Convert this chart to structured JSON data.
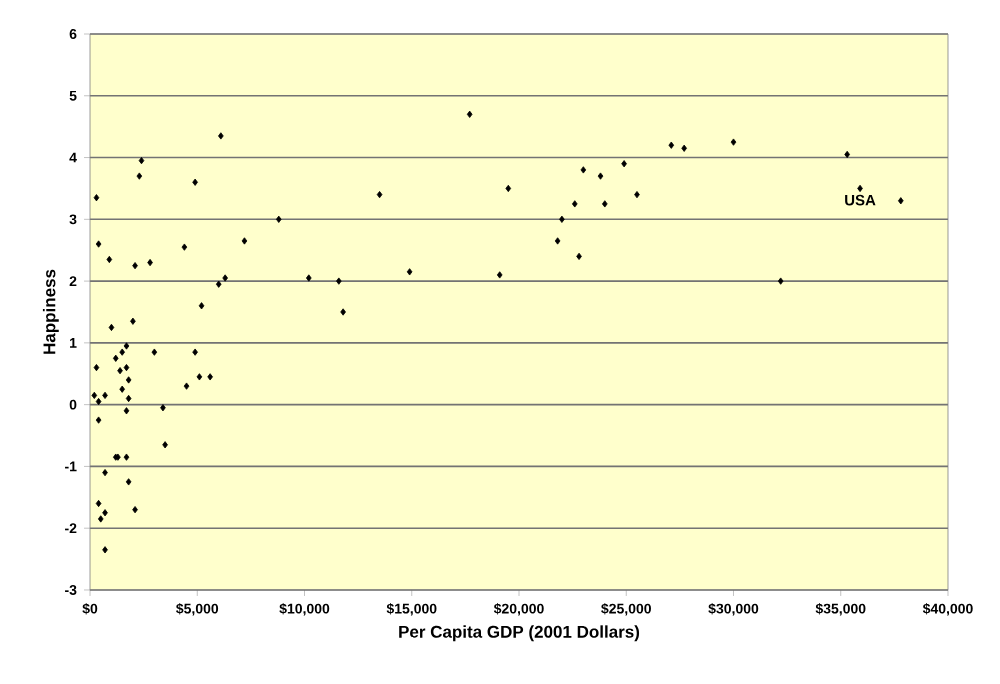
{
  "chart_data": {
    "type": "scatter",
    "xlabel": "Per Capita GDP (2001 Dollars)",
    "ylabel": "Happiness",
    "x": [
      6100,
      2400,
      2300,
      4900,
      300,
      8800,
      400,
      7200,
      4400,
      900,
      2800,
      2100,
      10200,
      6300,
      6000,
      5200,
      2000,
      1000,
      1700,
      3000,
      4900,
      1500,
      1200,
      300,
      1700,
      1400,
      1800,
      5100,
      5600,
      4500,
      1500,
      200,
      700,
      1800,
      400,
      1700,
      3400,
      400,
      3500,
      1300,
      1200,
      1700,
      700,
      1800,
      400,
      2100,
      700,
      500,
      700,
      17700,
      13500,
      19500,
      23000,
      23800,
      24900,
      25500,
      22600,
      24000,
      22000,
      21800,
      22800,
      11600,
      11800,
      14900,
      19100,
      27100,
      27700,
      30000,
      35300,
      35900,
      37800,
      32200
    ],
    "values": [
      4.35,
      3.95,
      3.7,
      3.6,
      3.35,
      3.0,
      2.6,
      2.65,
      2.55,
      2.35,
      2.3,
      2.25,
      2.05,
      2.05,
      1.95,
      1.6,
      1.35,
      1.25,
      0.95,
      0.85,
      0.85,
      0.85,
      0.75,
      0.6,
      0.6,
      0.55,
      0.4,
      0.45,
      0.45,
      0.3,
      0.25,
      0.15,
      0.15,
      0.1,
      0.05,
      -0.1,
      -0.05,
      -0.25,
      -0.65,
      -0.85,
      -0.85,
      -0.85,
      -1.1,
      -1.25,
      -1.6,
      -1.7,
      -1.75,
      -1.85,
      -2.35,
      4.7,
      3.4,
      3.5,
      3.8,
      3.7,
      3.9,
      3.4,
      3.25,
      3.25,
      3.0,
      2.65,
      2.4,
      2.0,
      1.5,
      2.15,
      2.1,
      4.2,
      4.15,
      4.25,
      4.05,
      3.5,
      3.3,
      2.0
    ],
    "color": "#000000",
    "marker": "diamond",
    "grid": "y",
    "xlim": [
      0,
      40000
    ],
    "ylim": [
      -3,
      6
    ],
    "xticks": [
      {
        "value": 0,
        "label": "$0"
      },
      {
        "value": 5000,
        "label": "$5,000"
      },
      {
        "value": 10000,
        "label": "$10,000"
      },
      {
        "value": 15000,
        "label": "$15,000"
      },
      {
        "value": 20000,
        "label": "$20,000"
      },
      {
        "value": 25000,
        "label": "$25,000"
      },
      {
        "value": 30000,
        "label": "$30,000"
      },
      {
        "value": 35000,
        "label": "$35,000"
      },
      {
        "value": 40000,
        "label": "$40,000"
      }
    ],
    "yticks": [
      -3,
      -2,
      -1,
      0,
      1,
      2,
      3,
      4,
      5,
      6
    ],
    "annotations": [
      {
        "text": "USA",
        "x": 35900,
        "y": 3.5
      }
    ]
  }
}
